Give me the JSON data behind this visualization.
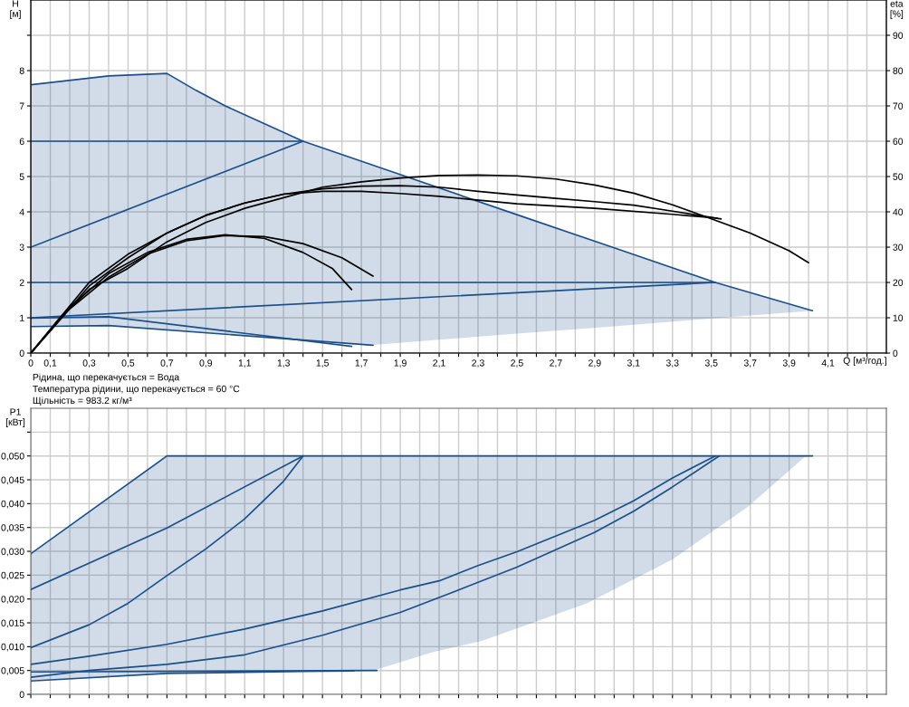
{
  "chart_data": [
    {
      "type": "line",
      "xlabel": "Q [м³/год.]",
      "ylabel": "H\n[м]",
      "y2label": "eta\n[%]",
      "xlim": [
        0,
        4.4
      ],
      "xticks": [
        0,
        {
          "value": 0.1,
          "label": "0,1"
        },
        {
          "value": 0.2,
          "label": null
        },
        {
          "value": 0.3,
          "label": "0,3"
        },
        {
          "value": 0.4,
          "label": null
        },
        {
          "value": 0.5,
          "label": "0,5"
        },
        {
          "value": 0.6,
          "label": null
        },
        {
          "value": 0.7,
          "label": "0,7"
        },
        {
          "value": 0.8,
          "label": null
        },
        {
          "value": 0.9,
          "label": "0,9"
        },
        {
          "value": 1.0,
          "label": null
        },
        {
          "value": 1.1,
          "label": "1,1"
        },
        {
          "value": 1.2,
          "label": null
        },
        {
          "value": 1.3,
          "label": "1,3"
        },
        {
          "value": 1.4,
          "label": null
        },
        {
          "value": 1.5,
          "label": "1,5"
        },
        {
          "value": 1.6,
          "label": null
        },
        {
          "value": 1.7,
          "label": "1,7"
        },
        {
          "value": 1.8,
          "label": null
        },
        {
          "value": 1.9,
          "label": "1,9"
        },
        {
          "value": 2.0,
          "label": null
        },
        {
          "value": 2.1,
          "label": "2,1"
        },
        {
          "value": 2.2,
          "label": null
        },
        {
          "value": 2.3,
          "label": "2,3"
        },
        {
          "value": 2.4,
          "label": null
        },
        {
          "value": 2.5,
          "label": "2,5"
        },
        {
          "value": 2.6,
          "label": null
        },
        {
          "value": 2.7,
          "label": "2,7"
        },
        {
          "value": 2.8,
          "label": null
        },
        {
          "value": 2.9,
          "label": "2,9"
        },
        {
          "value": 3.0,
          "label": null
        },
        {
          "value": 3.1,
          "label": "3,1"
        },
        {
          "value": 3.2,
          "label": null
        },
        {
          "value": 3.3,
          "label": "3,3"
        },
        {
          "value": 3.4,
          "label": null
        },
        {
          "value": 3.5,
          "label": "3,5"
        },
        {
          "value": 3.6,
          "label": null
        },
        {
          "value": 3.7,
          "label": "3,7"
        },
        {
          "value": 3.8,
          "label": null
        },
        {
          "value": 3.9,
          "label": "3,9"
        },
        {
          "value": 4.0,
          "label": null
        },
        {
          "value": 4.1,
          "label": "4,1"
        },
        {
          "value": 4.2,
          "label": null
        },
        {
          "value": 4.3,
          "label": null
        }
      ],
      "ylim": [
        0,
        10
      ],
      "yticks": [
        0,
        1,
        2,
        3,
        4,
        5,
        6,
        7,
        8,
        {
          "value": 9,
          "label": null
        }
      ],
      "y2lim": [
        0,
        100
      ],
      "y2ticks": [
        0,
        10,
        20,
        30,
        40,
        50,
        60,
        70,
        80,
        90
      ],
      "grid": true,
      "series": [
        {
          "color": "#1a4f8b",
          "x": [
            0,
            0.4,
            0.7,
            0.85,
            1.0,
            1.4,
            1.76,
            2.5,
            3.0,
            3.52,
            4.02
          ],
          "values": [
            7.6,
            7.85,
            7.92,
            7.44,
            7.0,
            6.0,
            5.32,
            3.92,
            2.98,
            2.0,
            1.2
          ],
          "upper": [
            7.6,
            7.85,
            7.92,
            7.44,
            7.0,
            6.0,
            5.32,
            3.92,
            2.98,
            2.0,
            1.2
          ],
          "lower": [
            0.75,
            0.78,
            0.66,
            0.6,
            0.54,
            0.38,
            0.23,
            0.55,
            0.76,
            0.99,
            1.2
          ]
        },
        {
          "color": "#1a4f8b",
          "x": [
            0,
            1.4
          ],
          "values": [
            6.0,
            6.0
          ]
        },
        {
          "color": "#1a4f8b",
          "x": [
            0,
            1.4
          ],
          "values": [
            3.0,
            6.0
          ]
        },
        {
          "color": "#1a4f8b",
          "x": [
            0,
            3.52
          ],
          "values": [
            2.0,
            2.0
          ]
        },
        {
          "color": "#1a4f8b",
          "x": [
            0,
            3.52
          ],
          "values": [
            1.0,
            2.0
          ]
        },
        {
          "color": "#1a4f8b",
          "x": [
            0,
            0.4,
            1.65
          ],
          "values": [
            0.99,
            1.03,
            0.19
          ]
        },
        {
          "color": "#1a4f8b",
          "x": [
            0,
            0.4,
            1.76
          ],
          "values": [
            0.75,
            0.78,
            0.22
          ]
        },
        {
          "color": "#000000",
          "axis": "y2",
          "x": [
            0,
            0.15,
            0.3,
            0.5,
            0.7,
            0.9,
            1.1,
            1.3,
            1.5,
            1.7,
            1.9,
            2.1,
            2.3,
            2.5,
            2.7,
            2.9,
            3.1,
            3.3,
            3.5,
            3.7,
            3.9,
            4.0
          ],
          "values": [
            0,
            10,
            18,
            24,
            31.5,
            37,
            41,
            44,
            47,
            48.5,
            49.6,
            50.3,
            50.4,
            50.2,
            49.3,
            47.6,
            45.3,
            42,
            38,
            34,
            29,
            25.6
          ]
        },
        {
          "color": "#000000",
          "axis": "y2",
          "x": [
            0,
            0.3,
            0.5,
            0.7,
            0.9,
            1.1,
            1.3,
            1.5,
            1.7,
            1.9,
            2.1,
            2.3,
            2.5,
            2.7,
            2.9,
            3.1,
            3.3,
            3.55
          ],
          "values": [
            0,
            20,
            28,
            34,
            39,
            42.5,
            45,
            46.5,
            47.3,
            47.4,
            47,
            45.8,
            44.8,
            43.8,
            42.9,
            41.9,
            40.2,
            38
          ]
        },
        {
          "color": "#000000",
          "axis": "y2",
          "x": [
            0,
            0.3,
            0.5,
            0.7,
            0.9,
            1.1,
            1.3,
            1.5,
            1.7,
            1.9,
            2.1,
            2.5,
            2.9,
            3.3,
            3.53
          ],
          "values": [
            0,
            19,
            27,
            34,
            39,
            42.5,
            45,
            45.8,
            45.8,
            45.2,
            44.4,
            42.3,
            41,
            39.3,
            38.2
          ]
        },
        {
          "color": "#000000",
          "axis": "y2",
          "x": [
            0,
            0.2,
            0.4,
            0.6,
            0.8,
            1.0,
            1.2,
            1.4,
            1.55,
            1.65
          ],
          "values": [
            0,
            13,
            22.5,
            28.5,
            32.2,
            33.5,
            32.5,
            28.5,
            24,
            18
          ]
        },
        {
          "color": "#000000",
          "axis": "y2",
          "x": [
            0,
            0.2,
            0.4,
            0.6,
            0.8,
            1.0,
            1.2,
            1.4,
            1.6,
            1.76
          ],
          "values": [
            0,
            12.5,
            21.5,
            28,
            31.8,
            33.3,
            33,
            31,
            27,
            21.8
          ]
        }
      ],
      "annotations": [
        "Рідина, що перекачується = Вода",
        "Температура рідини, що перекачується = 60 °C",
        "Щільність = 983.2 кг/м³"
      ]
    },
    {
      "type": "line",
      "ylabel": "P1\n[кВт]",
      "tick_labels": "y",
      "xlim": [
        0,
        4.4
      ],
      "xticks": [
        0,
        0.1,
        0.2,
        0.3,
        0.4,
        0.5,
        0.6,
        0.7,
        0.8,
        0.9,
        1.0,
        1.1,
        1.2,
        1.3,
        1.4,
        1.5,
        1.6,
        1.7,
        1.8,
        1.9,
        2.0,
        2.1,
        2.2,
        2.3,
        2.4,
        2.5,
        2.6,
        2.7,
        2.8,
        2.9,
        3.0,
        3.1,
        3.2,
        3.3,
        3.4,
        3.5,
        3.6,
        3.7,
        3.8,
        3.9,
        4.0,
        4.1,
        4.2,
        4.3
      ],
      "ylim": [
        0,
        0.06
      ],
      "yticks": [
        0,
        {
          "value": 0.005,
          "label": "0,005"
        },
        {
          "value": 0.01,
          "label": "0,010"
        },
        {
          "value": 0.015,
          "label": "0,015"
        },
        {
          "value": 0.02,
          "label": "0,020"
        },
        {
          "value": 0.025,
          "label": "0,025"
        },
        {
          "value": 0.03,
          "label": "0,030"
        },
        {
          "value": 0.035,
          "label": "0,035"
        },
        {
          "value": 0.04,
          "label": "0,040"
        },
        {
          "value": 0.045,
          "label": "0,045"
        },
        {
          "value": 0.05,
          "label": "0,050"
        },
        {
          "value": 0.055,
          "label": null
        }
      ],
      "grid": true,
      "series": [
        {
          "color": "#1a4f8b",
          "x": [
            0,
            0.7,
            1.4,
            1.76,
            2.07,
            2.32,
            2.86,
            3.3,
            3.69,
            3.98,
            4.02
          ],
          "values": [
            0.0295,
            0.05,
            0.05,
            0.05,
            0.05,
            0.05,
            0.05,
            0.05,
            0.05,
            0.05,
            0.05
          ],
          "upper": [
            0.0295,
            0.05,
            0.05,
            0.05,
            0.05,
            0.05,
            0.05,
            0.05,
            0.05,
            0.05,
            0.05
          ],
          "lower": [
            0.0029,
            0.0044,
            0.0048,
            0.005,
            0.0089,
            0.0112,
            0.0191,
            0.0283,
            0.0394,
            0.0498,
            0.05
          ]
        },
        {
          "color": "#1a4f8b",
          "x": [
            0,
            0.7,
            1.4
          ],
          "values": [
            0.022,
            0.0349,
            0.05
          ]
        },
        {
          "color": "#1a4f8b",
          "x": [
            0,
            0.3,
            0.5,
            0.7,
            0.9,
            1.1,
            1.3,
            1.4
          ],
          "values": [
            0.0098,
            0.0146,
            0.0191,
            0.0249,
            0.0305,
            0.0368,
            0.0447,
            0.05
          ]
        },
        {
          "color": "#1a4f8b",
          "x": [
            0,
            0.3,
            0.7,
            1.1,
            1.5,
            1.9,
            2.1,
            2.3,
            2.5,
            2.9,
            3.1,
            3.3,
            3.52
          ],
          "values": [
            0.0063,
            0.008,
            0.0105,
            0.0137,
            0.0175,
            0.0219,
            0.0238,
            0.027,
            0.0299,
            0.0365,
            0.0406,
            0.0454,
            0.05
          ]
        },
        {
          "color": "#1a4f8b",
          "x": [
            0,
            0.3,
            0.7,
            1.1,
            1.5,
            1.9,
            2.17,
            2.3,
            2.5,
            2.9,
            3.1,
            3.3,
            3.54
          ],
          "values": [
            0.0036,
            0.005,
            0.0063,
            0.0083,
            0.0124,
            0.0172,
            0.0214,
            0.0235,
            0.0267,
            0.034,
            0.0384,
            0.0435,
            0.05
          ]
        },
        {
          "color": "#1a4f8b",
          "x": [
            0,
            1.78
          ],
          "values": [
            0.0047,
            0.005
          ]
        },
        {
          "color": "#1a4f8b",
          "x": [
            0,
            0.7,
            1.4,
            1.66
          ],
          "values": [
            0.0028,
            0.0044,
            0.0048,
            0.0049
          ]
        }
      ]
    }
  ]
}
